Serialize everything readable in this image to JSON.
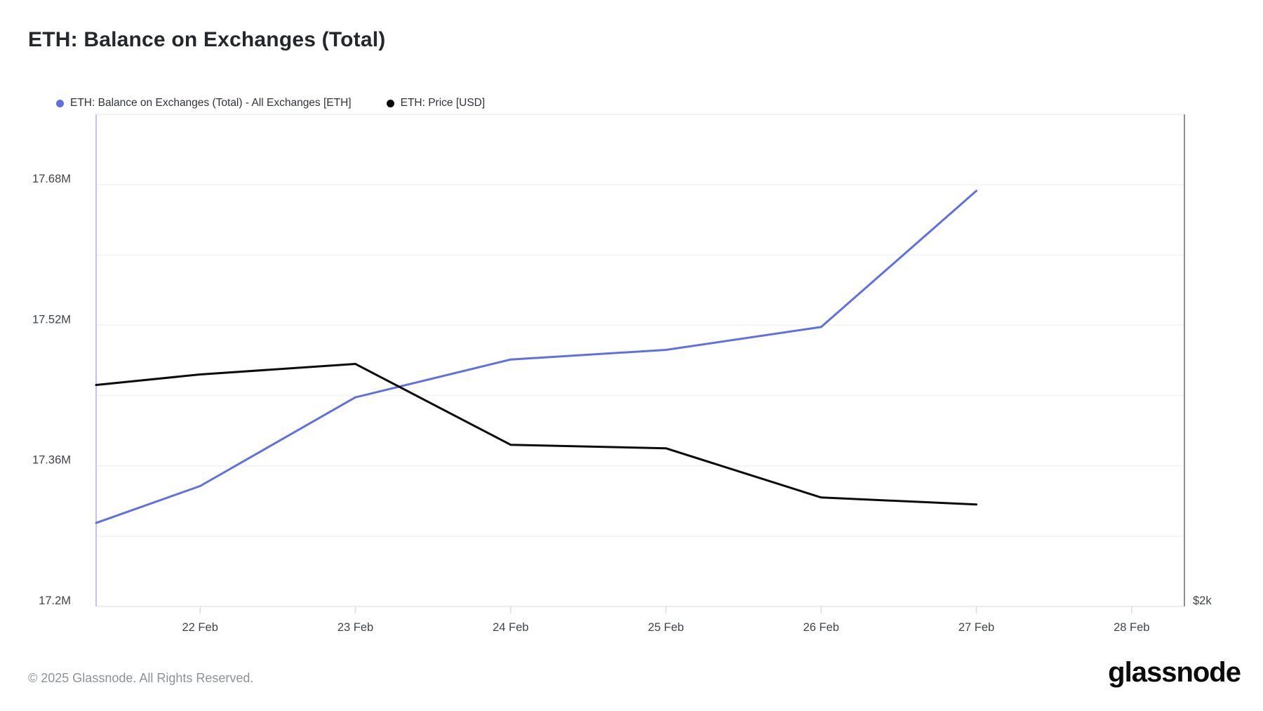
{
  "title": "ETH: Balance on Exchanges (Total)",
  "legend": {
    "items": [
      {
        "label": "ETH: Balance on Exchanges (Total) - All Exchanges [ETH]",
        "color": "#5f70e2"
      },
      {
        "label": "ETH: Price [USD]",
        "color": "#0a0a0b"
      }
    ]
  },
  "footer": {
    "copyright": "© 2025 Glassnode. All Rights Reserved.",
    "brand": "glassnode"
  },
  "colors": {
    "balance_line": "#5f70e2",
    "price_line": "#0a0a0b",
    "gridline": "#f1f2f4",
    "axis_left_border": "#bdc6ef",
    "axis_right_border": "#8c8f94",
    "axis_top_border": "#ededef",
    "axis_bottom_border": "#e6e7e9",
    "tick": "#d9dadc",
    "axis_label": "#3f4449"
  },
  "chart_data": {
    "type": "line",
    "title": "ETH: Balance on Exchanges (Total)",
    "grid": "horizontal-only",
    "legend_position": "top-left",
    "x_axis": {
      "unit": "date (Feb)",
      "tick_labels": [
        "22 Feb",
        "23 Feb",
        "24 Feb",
        "25 Feb",
        "26 Feb",
        "27 Feb",
        "28 Feb"
      ],
      "tick_values": [
        22,
        23,
        24,
        25,
        26,
        27,
        28
      ],
      "range": [
        21.33,
        28.34
      ]
    },
    "y_left_axis": {
      "unit": "million ETH",
      "tick_labels": [
        "17.68M",
        "17.52M",
        "17.36M",
        "17.2M"
      ],
      "tick_values": [
        17.68,
        17.52,
        17.36,
        17.2
      ],
      "gridline_values": [
        17.28,
        17.36,
        17.44,
        17.52,
        17.6,
        17.68
      ],
      "range": [
        17.2,
        17.76
      ]
    },
    "y_right_axis": {
      "unit": "USD",
      "tick_labels": [
        "$2k"
      ],
      "tick_values": [
        2000
      ],
      "range": [
        2000,
        3400
      ]
    },
    "series": [
      {
        "name": "ETH: Balance on Exchanges (Total) - All Exchanges [ETH]",
        "axis": "left",
        "color": "#5f70e2",
        "x": [
          21.33,
          22,
          23,
          24,
          25,
          26,
          27
        ],
        "values": [
          17.295,
          17.337,
          17.438,
          17.481,
          17.492,
          17.518,
          17.673
        ]
      },
      {
        "name": "ETH: Price [USD]",
        "axis": "right",
        "color": "#0a0a0b",
        "x": [
          21.33,
          22,
          23,
          24,
          25,
          26,
          27
        ],
        "values": [
          2630,
          2660,
          2690,
          2460,
          2450,
          2310,
          2290
        ]
      }
    ]
  }
}
